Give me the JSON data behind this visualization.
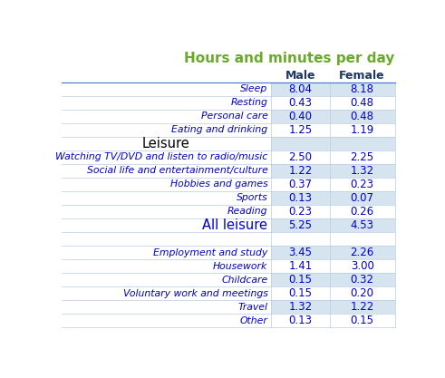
{
  "title": "Hours and minutes per day",
  "title_color": "#6aaa2a",
  "col_headers": [
    "Male",
    "Female"
  ],
  "col_header_color": "#1f3864",
  "rows": [
    {
      "label": "Sleep",
      "male": "8.04",
      "female": "8.18",
      "type": "data"
    },
    {
      "label": "Resting",
      "male": "0.43",
      "female": "0.48",
      "type": "data"
    },
    {
      "label": "Personal care",
      "male": "0.40",
      "female": "0.48",
      "type": "data"
    },
    {
      "label": "Eating and drinking",
      "male": "1.25",
      "female": "1.19",
      "type": "data"
    },
    {
      "label": "Leisure",
      "male": "",
      "female": "",
      "type": "section"
    },
    {
      "label": "Watching TV/DVD and listen to radio/music",
      "male": "2.50",
      "female": "2.25",
      "type": "data"
    },
    {
      "label": "Social life and entertainment/culture",
      "male": "1.22",
      "female": "1.32",
      "type": "data"
    },
    {
      "label": "Hobbies and games",
      "male": "0.37",
      "female": "0.23",
      "type": "data"
    },
    {
      "label": "Sports",
      "male": "0.13",
      "female": "0.07",
      "type": "data"
    },
    {
      "label": "Reading",
      "male": "0.23",
      "female": "0.26",
      "type": "data"
    },
    {
      "label": "All leisure",
      "male": "5.25",
      "female": "4.53",
      "type": "subtotal"
    },
    {
      "label": "",
      "male": "",
      "female": "",
      "type": "blank"
    },
    {
      "label": "Employment and study",
      "male": "3.45",
      "female": "2.26",
      "type": "data"
    },
    {
      "label": "Housework",
      "male": "1.41",
      "female": "3.00",
      "type": "data"
    },
    {
      "label": "Childcare",
      "male": "0.15",
      "female": "0.32",
      "type": "data"
    },
    {
      "label": "Voluntary work and meetings",
      "male": "0.15",
      "female": "0.20",
      "type": "data"
    },
    {
      "label": "Travel",
      "male": "1.32",
      "female": "1.22",
      "type": "data"
    },
    {
      "label": "Other",
      "male": "0.13",
      "female": "0.15",
      "type": "data"
    }
  ],
  "label_color": "#0000cc",
  "data_color": "#0000cc",
  "section_label_color": "#000000",
  "subtotal_label_color": "#0000cc",
  "bg_blue": "#d6e4f0",
  "bg_white": "#ffffff",
  "line_color": "#b8cce4",
  "header_line_color": "#4472c4"
}
